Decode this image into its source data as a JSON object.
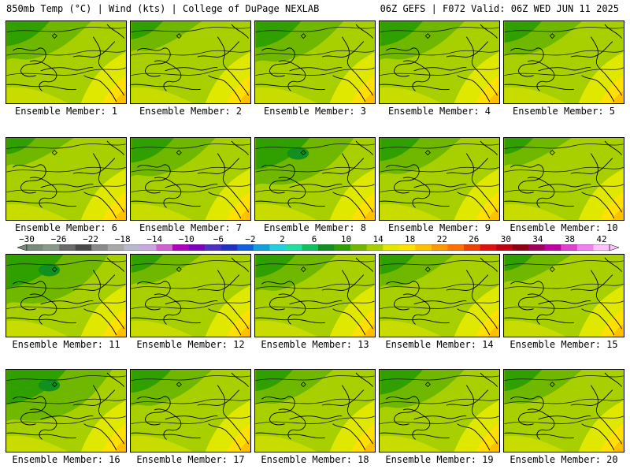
{
  "header": {
    "left_title": "850mb Temp (°C) | Wind (kts) | College of DuPage NEXLAB",
    "right_title": "06Z GEFS | F072 Valid: 06Z WED JUN 11 2025"
  },
  "panels": [
    {
      "label": "Ensemble Member: 1",
      "member": 1,
      "cool": 0.55
    },
    {
      "label": "Ensemble Member: 2",
      "member": 2,
      "cool": 0.35
    },
    {
      "label": "Ensemble Member: 3",
      "member": 3,
      "cool": 0.6
    },
    {
      "label": "Ensemble Member: 4",
      "member": 4,
      "cool": 0.55
    },
    {
      "label": "Ensemble Member: 5",
      "member": 5,
      "cool": 0.45
    },
    {
      "label": "Ensemble Member: 6",
      "member": 6,
      "cool": 0.3
    },
    {
      "label": "Ensemble Member: 7",
      "member": 7,
      "cool": 0.55
    },
    {
      "label": "Ensemble Member: 8",
      "member": 8,
      "cool": 0.75
    },
    {
      "label": "Ensemble Member: 9",
      "member": 9,
      "cool": 0.5
    },
    {
      "label": "Ensemble Member: 10",
      "member": 10,
      "cool": 0.3
    },
    {
      "label": "Ensemble Member: 11",
      "member": 11,
      "cool": 0.8
    },
    {
      "label": "Ensemble Member: 12",
      "member": 12,
      "cool": 0.35
    },
    {
      "label": "Ensemble Member: 13",
      "member": 13,
      "cool": 0.5
    },
    {
      "label": "Ensemble Member: 14",
      "member": 14,
      "cool": 0.4
    },
    {
      "label": "Ensemble Member: 15",
      "member": 15,
      "cool": 0.3
    },
    {
      "label": "Ensemble Member: 16",
      "member": 16,
      "cool": 0.85
    },
    {
      "label": "Ensemble Member: 17",
      "member": 17,
      "cool": 0.5
    },
    {
      "label": "Ensemble Member: 18",
      "member": 18,
      "cool": 0.45
    },
    {
      "label": "Ensemble Member: 19",
      "member": 19,
      "cool": 0.55
    },
    {
      "label": "Ensemble Member: 20",
      "member": 20,
      "cool": 0.45
    }
  ],
  "colorbar": {
    "ticks": [
      "−30",
      "−26",
      "−22",
      "−18",
      "−14",
      "−10",
      "−6",
      "−2",
      "2",
      "6",
      "10",
      "14",
      "18",
      "22",
      "26",
      "30",
      "34",
      "38",
      "42"
    ],
    "colors": [
      "#7a8a7a",
      "#8a9a8a",
      "#6a6a6a",
      "#4a4a4a",
      "#8a8a8a",
      "#a8a8a8",
      "#b8b8d0",
      "#c8a8e0",
      "#d060d0",
      "#b000c0",
      "#8000c0",
      "#5030c0",
      "#2030c0",
      "#1060e0",
      "#10a0e0",
      "#20d0e0",
      "#20e0a0",
      "#10c060",
      "#109020",
      "#30a000",
      "#70b800",
      "#a8d000",
      "#e0e800",
      "#ffe000",
      "#ffc000",
      "#ff9800",
      "#ff7000",
      "#f04000",
      "#e01010",
      "#c00010",
      "#900010",
      "#a00060",
      "#c000a0",
      "#e040d0",
      "#f080f0",
      "#ffc0ff"
    ]
  }
}
